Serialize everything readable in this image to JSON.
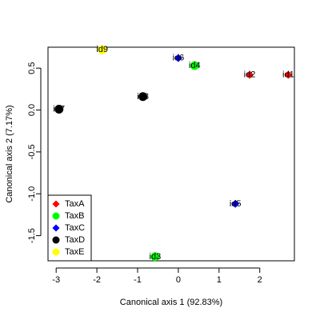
{
  "chart_data": {
    "type": "scatter",
    "title": "",
    "xlabel": "Canonical axis 1 (92.83%)",
    "ylabel": "Canonical axis 2 (7.17%)",
    "xlim": [
      -3.2,
      2.85
    ],
    "ylim": [
      -1.8,
      0.75
    ],
    "xticks": [
      -3,
      -2,
      -1,
      0,
      1,
      2
    ],
    "yticks": [
      -1.5,
      -1.0,
      -0.5,
      0.0,
      0.5
    ],
    "ytick_labels": [
      "-1.5",
      "-1.0",
      "-0.5",
      "0.0",
      "0.5"
    ],
    "legend_position": "bottom-left",
    "series": [
      {
        "name": "TaxA",
        "color": "#ff0000",
        "shape": "diamond"
      },
      {
        "name": "TaxB",
        "color": "#00ff00",
        "shape": "circle"
      },
      {
        "name": "TaxC",
        "color": "#0000ff",
        "shape": "diamond"
      },
      {
        "name": "TaxD",
        "color": "#000000",
        "shape": "circle"
      },
      {
        "name": "TaxE",
        "color": "#ffff00",
        "shape": "circle"
      }
    ],
    "points": [
      {
        "label": "id1",
        "series": "TaxA",
        "x": 2.7,
        "y": 0.42
      },
      {
        "label": "id2",
        "series": "TaxA",
        "x": 1.75,
        "y": 0.42
      },
      {
        "label": "id3",
        "series": "TaxB",
        "x": -0.57,
        "y": -1.75
      },
      {
        "label": "id4",
        "series": "TaxB",
        "x": 0.4,
        "y": 0.53
      },
      {
        "label": "id5",
        "series": "TaxC",
        "x": 1.4,
        "y": -1.12
      },
      {
        "label": "id6",
        "series": "TaxC",
        "x": 0.0,
        "y": 0.62
      },
      {
        "label": "id7",
        "series": "TaxD",
        "x": -2.93,
        "y": 0.01
      },
      {
        "label": "id8",
        "series": "TaxD",
        "x": -0.87,
        "y": 0.16
      },
      {
        "label": "id9",
        "series": "TaxE",
        "x": -1.87,
        "y": 0.72
      }
    ]
  }
}
